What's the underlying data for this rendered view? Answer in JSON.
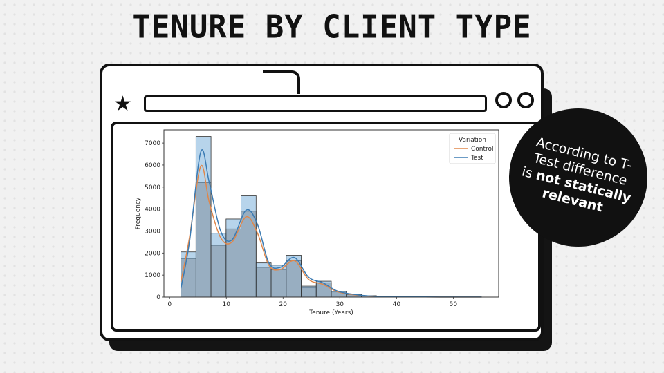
{
  "slide": {
    "title": "TENURE BY CLIENT TYPE"
  },
  "callout": {
    "line1": "According to T-",
    "line2": "Test difference",
    "line3_plain": "is ",
    "line3_bold": "not statically",
    "line4_bold": "relevant"
  },
  "chart_data": {
    "type": "bar",
    "subtype": "overlaid histogram with KDE curves",
    "xlabel": "Tenure (Years)",
    "ylabel": "Frequency",
    "xlim": [
      -1,
      58
    ],
    "ylim": [
      0,
      7600
    ],
    "xticks": [
      0,
      10,
      20,
      30,
      40,
      50
    ],
    "yticks": [
      0,
      1000,
      2000,
      3000,
      4000,
      5000,
      6000,
      7000
    ],
    "grid": false,
    "legend": {
      "title": "Variation",
      "placement": "top-right"
    },
    "bin_edges": [
      2,
      4.65,
      7.3,
      9.95,
      12.6,
      15.25,
      17.9,
      20.55,
      23.2,
      25.85,
      28.5,
      31.15,
      33.8,
      36.45,
      39.1,
      41.75,
      44.4,
      47.05,
      49.7,
      52.35,
      55
    ],
    "series": [
      {
        "name": "Control",
        "color": "#e0874a",
        "bar_color": "#b7a79d",
        "values": [
          1750,
          5200,
          2350,
          3100,
          3900,
          1350,
          1250,
          1650,
          420,
          650,
          230,
          110,
          55,
          25,
          12,
          8,
          5,
          3,
          2,
          2
        ],
        "kde": [
          [
            2,
            700
          ],
          [
            3.5,
            2700
          ],
          [
            5.5,
            5950
          ],
          [
            7,
            4300
          ],
          [
            9,
            2700
          ],
          [
            11,
            2500
          ],
          [
            13.5,
            3650
          ],
          [
            15.5,
            2900
          ],
          [
            17.5,
            1450
          ],
          [
            19.5,
            1250
          ],
          [
            22,
            1650
          ],
          [
            24.5,
            800
          ],
          [
            27,
            580
          ],
          [
            29.5,
            250
          ],
          [
            32,
            120
          ],
          [
            35,
            50
          ],
          [
            40,
            15
          ],
          [
            45,
            6
          ],
          [
            50,
            3
          ],
          [
            55,
            2
          ]
        ]
      },
      {
        "name": "Test",
        "color": "#3b7bb3",
        "bar_color": "#7bb0db",
        "values": [
          2050,
          7300,
          2900,
          3550,
          4600,
          1550,
          1450,
          1900,
          500,
          720,
          270,
          130,
          65,
          30,
          15,
          10,
          6,
          4,
          3,
          2
        ],
        "kde": [
          [
            2,
            400
          ],
          [
            3.5,
            2500
          ],
          [
            5.5,
            6600
          ],
          [
            7,
            5200
          ],
          [
            9,
            3000
          ],
          [
            11,
            2600
          ],
          [
            13.5,
            3950
          ],
          [
            15.5,
            3300
          ],
          [
            17.5,
            1550
          ],
          [
            19.5,
            1350
          ],
          [
            22,
            1800
          ],
          [
            24.5,
            900
          ],
          [
            27,
            650
          ],
          [
            29.5,
            280
          ],
          [
            32,
            140
          ],
          [
            35,
            55
          ],
          [
            40,
            18
          ],
          [
            45,
            7
          ],
          [
            50,
            4
          ],
          [
            55,
            2
          ]
        ]
      }
    ]
  }
}
